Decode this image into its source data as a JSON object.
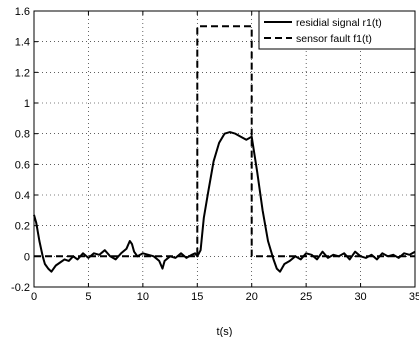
{
  "chart_data": {
    "type": "line",
    "title": "",
    "xlabel": "t(s)",
    "ylabel": "",
    "xlim": [
      0,
      35
    ],
    "ylim": [
      -0.2,
      1.6
    ],
    "x_ticks": [
      0,
      5,
      10,
      15,
      20,
      25,
      30,
      35
    ],
    "x_tick_labels": [
      "0",
      "5",
      "10",
      "15",
      "20",
      "25",
      "30",
      "35"
    ],
    "y_ticks": [
      -0.2,
      0,
      0.2,
      0.4,
      0.6,
      0.8,
      1,
      1.2,
      1.4,
      1.6
    ],
    "y_tick_labels": [
      "-0.2",
      "0",
      "0.2",
      "0.4",
      "0.6",
      "0.8",
      "1",
      "1.2",
      "1.4",
      "1.6"
    ],
    "grid": true,
    "legend_position": "top-right",
    "series": [
      {
        "name": "residial signal r1(t)",
        "style": "solid",
        "color": "#000000",
        "x": [
          0,
          0.2,
          0.5,
          0.8,
          1.0,
          1.3,
          1.6,
          2.0,
          2.4,
          2.8,
          3.2,
          3.6,
          4.0,
          4.5,
          5.0,
          5.5,
          6.0,
          6.5,
          7.0,
          7.5,
          8.0,
          8.5,
          8.8,
          9.0,
          9.2,
          9.5,
          10.0,
          10.5,
          11.0,
          11.5,
          11.8,
          12.0,
          12.5,
          13.0,
          13.5,
          14.0,
          14.5,
          14.8,
          15.0,
          15.3,
          15.6,
          16.0,
          16.5,
          17.0,
          17.5,
          18.0,
          18.5,
          19.0,
          19.5,
          20.0,
          20.5,
          21.0,
          21.5,
          22.0,
          22.3,
          22.6,
          23.0,
          23.5,
          24.0,
          24.5,
          25.0,
          25.5,
          26.0,
          26.5,
          27.0,
          27.5,
          28.0,
          28.5,
          29.0,
          29.5,
          30.0,
          30.5,
          31.0,
          31.5,
          32.0,
          32.5,
          33.0,
          33.5,
          34.0,
          34.5,
          35.0
        ],
        "y": [
          0.27,
          0.22,
          0.1,
          0.0,
          -0.05,
          -0.08,
          -0.1,
          -0.06,
          -0.04,
          -0.02,
          -0.03,
          0.0,
          -0.02,
          0.02,
          -0.01,
          0.02,
          0.01,
          0.04,
          0.0,
          -0.02,
          0.02,
          0.05,
          0.1,
          0.08,
          0.03,
          0.0,
          0.02,
          0.01,
          0.0,
          -0.03,
          -0.08,
          -0.03,
          0.0,
          -0.01,
          0.02,
          -0.01,
          0.01,
          0.02,
          0.0,
          0.04,
          0.25,
          0.42,
          0.62,
          0.74,
          0.8,
          0.81,
          0.8,
          0.78,
          0.76,
          0.78,
          0.55,
          0.3,
          0.1,
          -0.02,
          -0.08,
          -0.1,
          -0.05,
          -0.03,
          0.0,
          -0.02,
          0.02,
          0.01,
          -0.02,
          0.03,
          -0.01,
          0.01,
          0.0,
          0.02,
          -0.02,
          0.03,
          0.0,
          -0.01,
          0.01,
          -0.02,
          0.02,
          0.0,
          0.01,
          -0.01,
          0.02,
          0.01,
          0.03
        ]
      },
      {
        "name": "sensor fault f1(t)",
        "style": "dashed",
        "color": "#000000",
        "x": [
          0,
          15,
          15,
          20,
          20,
          35
        ],
        "y": [
          0,
          0,
          1.5,
          1.5,
          0,
          0
        ]
      }
    ]
  }
}
